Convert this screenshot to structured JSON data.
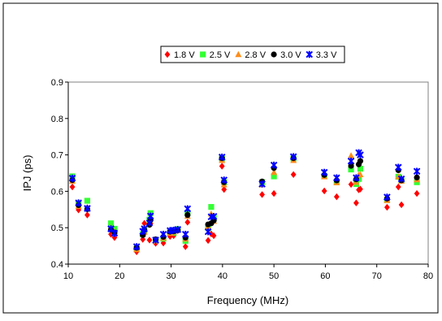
{
  "chart_data": {
    "type": "scatter",
    "title": "",
    "xlabel": "Frequency (MHz)",
    "ylabel": "IPJ (ps)",
    "xlim": [
      10,
      80
    ],
    "ylim": [
      0.4,
      0.9
    ],
    "xticks": [
      10,
      20,
      30,
      40,
      50,
      60,
      70,
      80
    ],
    "yticks": [
      0.4,
      0.5,
      0.6,
      0.7,
      0.8,
      0.9
    ],
    "xtick_labels": [
      "10",
      "20",
      "30",
      "40",
      "50",
      "60",
      "70",
      "80"
    ],
    "ytick_labels": [
      "0.4",
      "0.5",
      "0.6",
      "0.7",
      "0.8",
      "0.9"
    ],
    "grid": false,
    "legend_position": "top-center",
    "x": [
      10.8,
      12.0,
      13.7,
      18.3,
      19.0,
      23.3,
      24.5,
      24.8,
      25.8,
      26.0,
      27.0,
      28.5,
      29.8,
      30.5,
      31.3,
      32.8,
      33.2,
      37.2,
      37.8,
      38.3,
      39.9,
      40.3,
      47.7,
      50.0,
      53.8,
      59.8,
      62.2,
      65.0,
      66.0,
      66.5,
      66.8,
      72.0,
      74.2,
      74.8,
      77.8
    ],
    "series": [
      {
        "name": "1.8 V",
        "marker": "diamond",
        "color": "#ff0000",
        "values": [
          0.612,
          0.549,
          0.535,
          0.482,
          0.473,
          0.434,
          0.468,
          0.512,
          0.466,
          0.511,
          0.457,
          0.458,
          0.476,
          0.478,
          0.492,
          0.448,
          0.515,
          0.465,
          0.483,
          0.478,
          0.669,
          0.605,
          0.591,
          0.594,
          0.646,
          0.601,
          0.585,
          0.619,
          0.568,
          0.604,
          0.606,
          0.556,
          0.612,
          0.563,
          0.594
        ]
      },
      {
        "name": "2.5 V",
        "marker": "square",
        "color": "#33ff33",
        "values": [
          0.641,
          0.567,
          0.574,
          0.512,
          0.497,
          0.443,
          0.482,
          0.492,
          0.522,
          0.54,
          0.464,
          0.47,
          0.487,
          0.486,
          0.496,
          0.464,
          0.54,
          0.499,
          0.557,
          0.527,
          0.69,
          0.625,
          0.625,
          0.641,
          0.69,
          0.642,
          0.625,
          0.66,
          0.62,
          0.634,
          0.662,
          0.576,
          0.64,
          0.63,
          0.625
        ]
      },
      {
        "name": "2.8 V",
        "marker": "triangle",
        "color": "#ff8c1a",
        "values": [
          0.628,
          0.559,
          0.556,
          0.5,
          0.489,
          0.44,
          0.484,
          0.488,
          0.514,
          0.526,
          0.463,
          0.472,
          0.485,
          0.488,
          0.494,
          0.469,
          0.532,
          0.503,
          0.538,
          0.518,
          0.685,
          0.618,
          0.618,
          0.652,
          0.685,
          0.64,
          0.624,
          0.698,
          0.625,
          0.645,
          0.646,
          0.575,
          0.64,
          0.628,
          0.632
        ]
      },
      {
        "name": "3.0 V",
        "marker": "circle",
        "color": "#000000",
        "values": [
          0.631,
          0.562,
          0.551,
          0.495,
          0.487,
          0.445,
          0.48,
          0.494,
          0.508,
          0.521,
          0.468,
          0.475,
          0.489,
          0.49,
          0.493,
          0.473,
          0.535,
          0.509,
          0.512,
          0.52,
          0.691,
          0.625,
          0.627,
          0.664,
          0.691,
          0.645,
          0.63,
          0.67,
          0.633,
          0.674,
          0.683,
          0.58,
          0.658,
          0.63,
          0.638
        ]
      },
      {
        "name": "3.3 V",
        "marker": "asterisk",
        "color": "#0000ff",
        "values": [
          0.636,
          0.568,
          0.553,
          0.497,
          0.485,
          0.448,
          0.49,
          0.497,
          0.513,
          0.532,
          0.466,
          0.482,
          0.492,
          0.493,
          0.495,
          0.482,
          0.552,
          0.489,
          0.53,
          0.531,
          0.694,
          0.631,
          0.62,
          0.672,
          0.695,
          0.652,
          0.637,
          0.683,
          0.637,
          0.706,
          0.7,
          0.584,
          0.666,
          0.634,
          0.655
        ]
      }
    ]
  }
}
